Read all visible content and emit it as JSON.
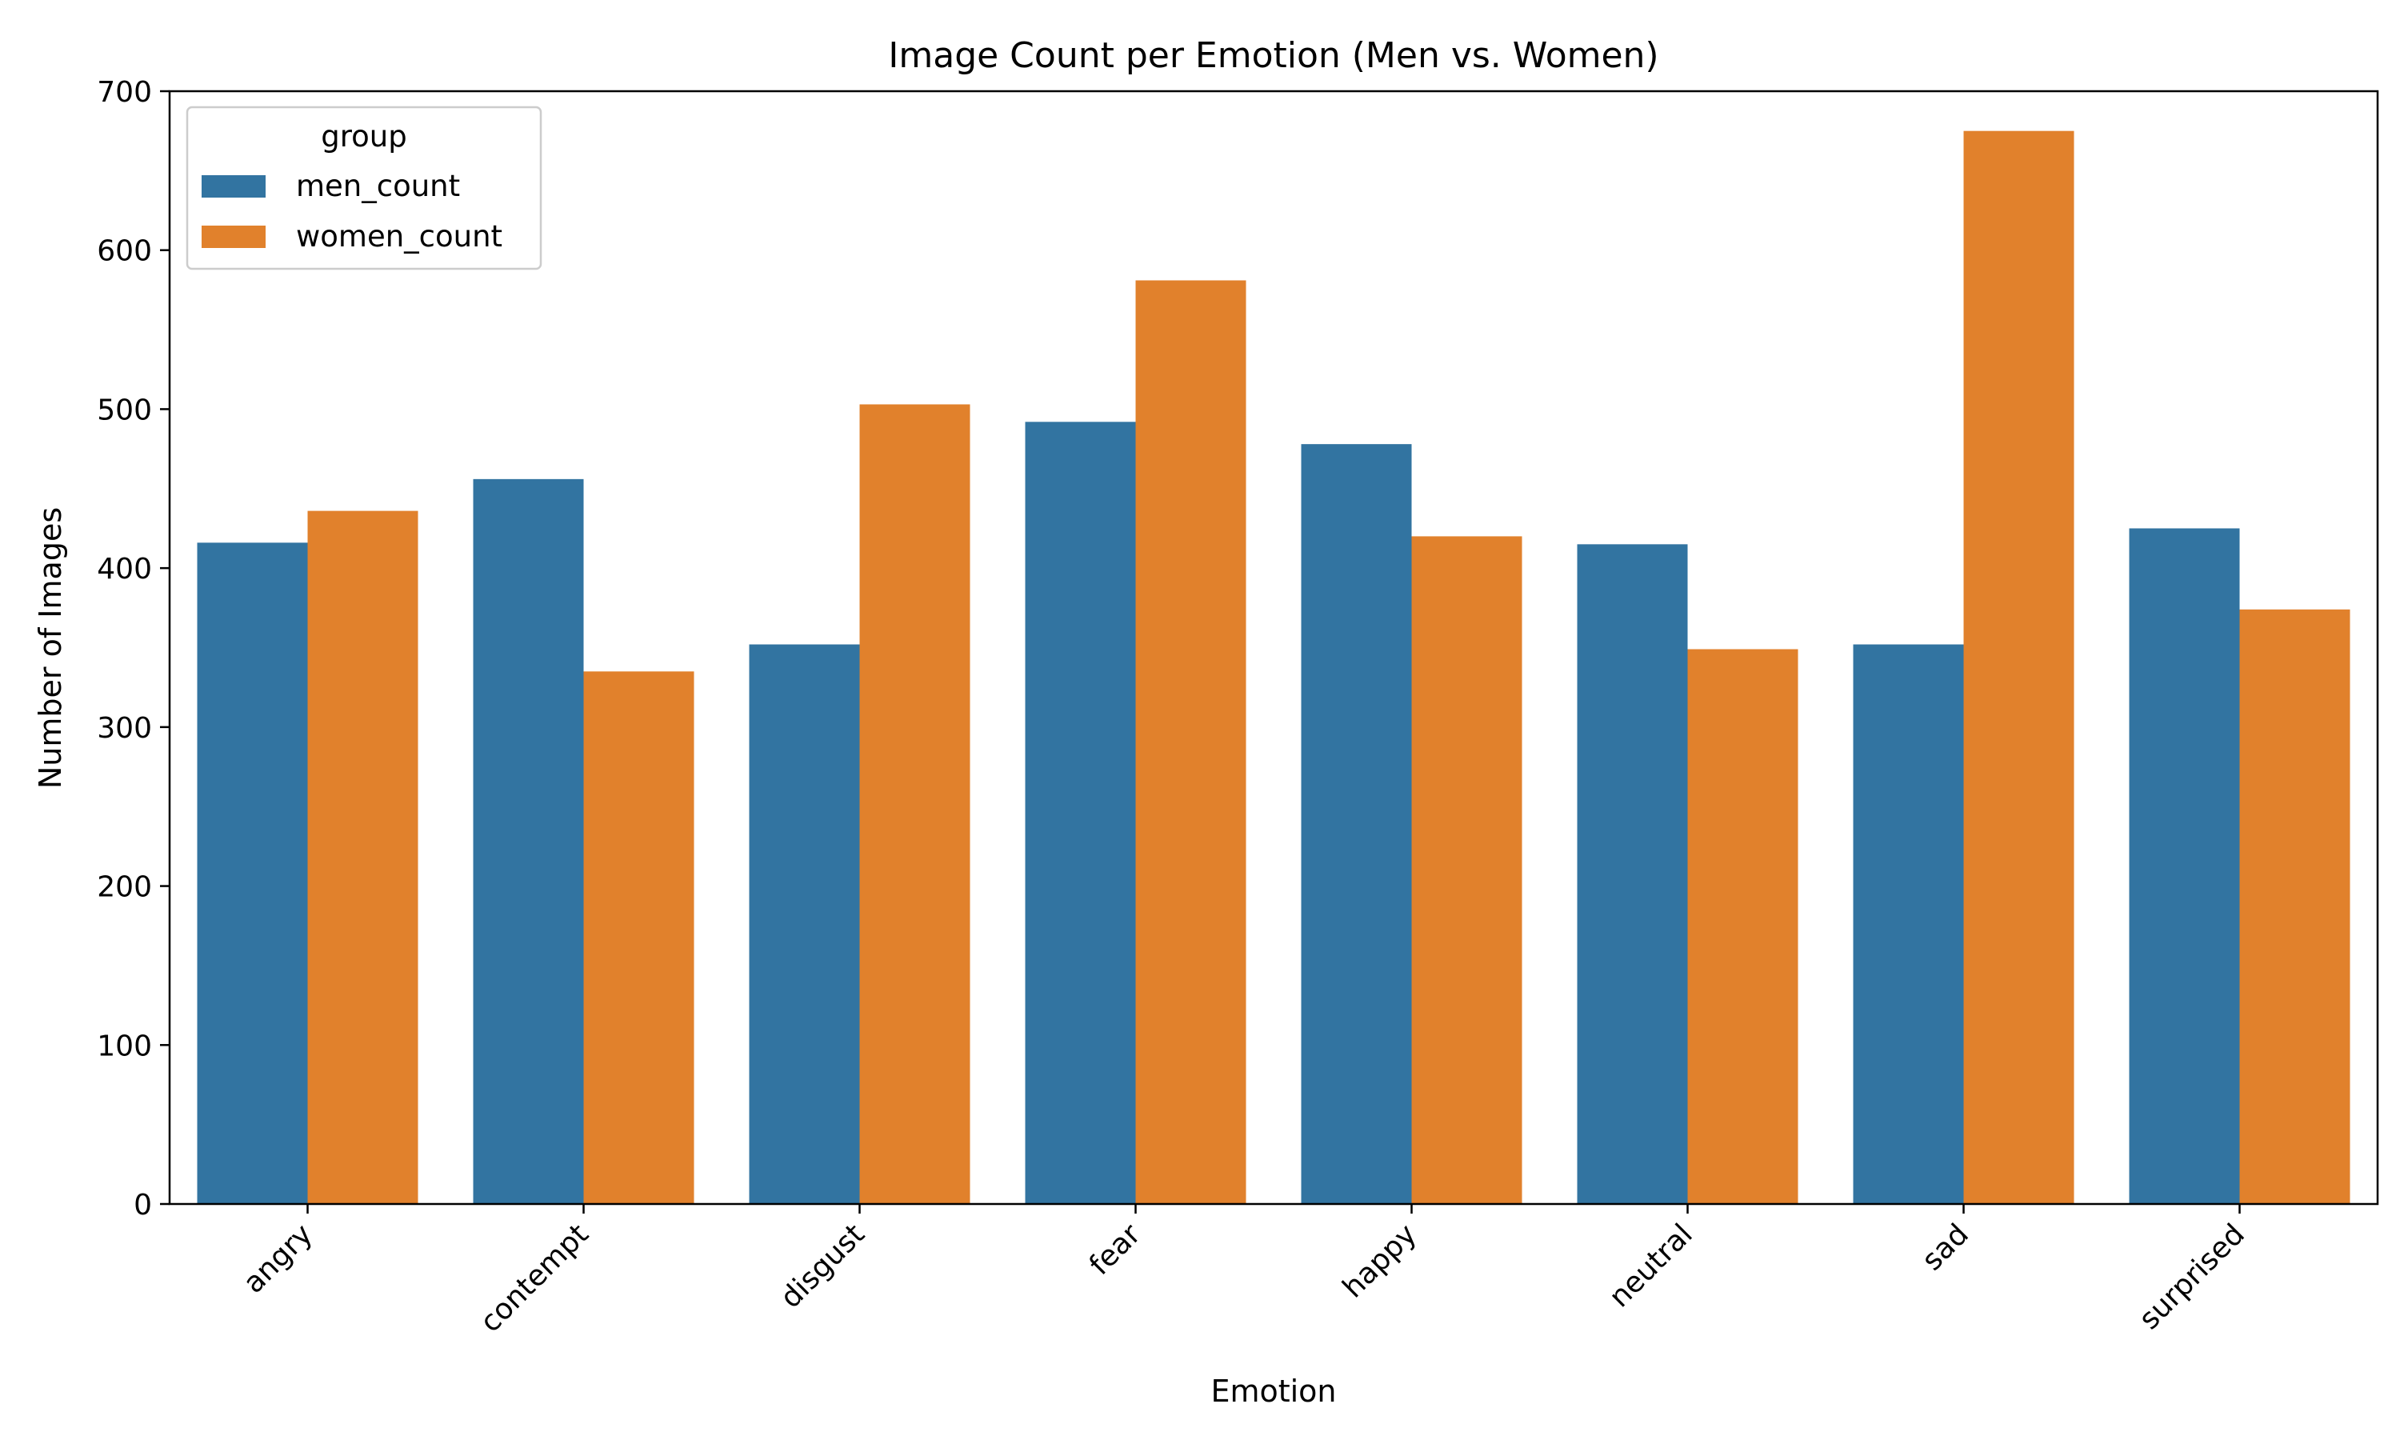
{
  "chart_data": {
    "type": "bar",
    "title": "Image Count per Emotion (Men vs. Women)",
    "xlabel": "Emotion",
    "ylabel": "Number of Images",
    "categories": [
      "angry",
      "contempt",
      "disgust",
      "fear",
      "happy",
      "neutral",
      "sad",
      "surprised"
    ],
    "series": [
      {
        "name": "men_count",
        "color": "#3274a1",
        "values": [
          416,
          456,
          352,
          492,
          478,
          415,
          352,
          425
        ]
      },
      {
        "name": "women_count",
        "color": "#e1812c",
        "values": [
          436,
          335,
          503,
          581,
          420,
          349,
          675,
          374
        ]
      }
    ],
    "ylim": [
      0,
      700
    ],
    "yticks": [
      0,
      100,
      200,
      300,
      400,
      500,
      600,
      700
    ],
    "grid": false,
    "legend": {
      "title": "group",
      "position": "top-left"
    }
  }
}
